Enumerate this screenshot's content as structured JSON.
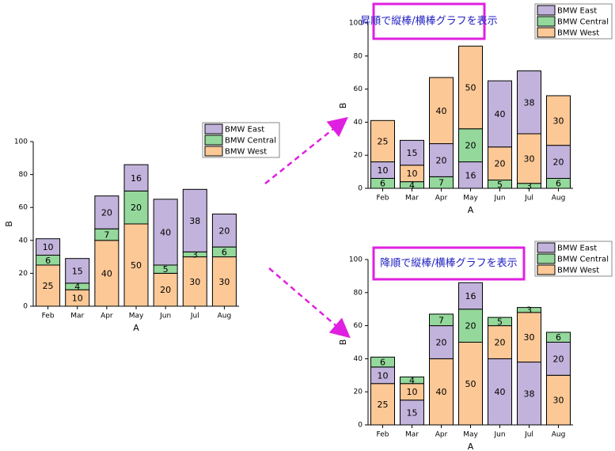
{
  "chart_data": [
    {
      "type": "bar",
      "stacked": true,
      "x_label": "A",
      "y_label": "B",
      "categories": [
        "Feb",
        "Mar",
        "Apr",
        "May",
        "Jun",
        "Jul",
        "Aug"
      ],
      "series": [
        {
          "name": "BMW West",
          "color": "#fcc896",
          "values": [
            25,
            10,
            40,
            50,
            20,
            30,
            30
          ]
        },
        {
          "name": "BMW Central",
          "color": "#94d89b",
          "values": [
            6,
            4,
            7,
            20,
            5,
            3,
            6
          ]
        },
        {
          "name": "BMW East",
          "color": "#c2b3dc",
          "values": [
            10,
            15,
            20,
            16,
            40,
            38,
            20
          ]
        }
      ],
      "ylim": [
        0,
        100
      ],
      "yticks": [
        0,
        20,
        40,
        60,
        80,
        100
      ]
    },
    {
      "type": "bar",
      "stacked": true,
      "stack_order": "ascending",
      "annotation": "昇順で縦棒/横棒グラフを表示",
      "x_label": "A",
      "y_label": "B",
      "categories": [
        "Feb",
        "Mar",
        "Apr",
        "May",
        "Jun",
        "Jul",
        "Aug"
      ],
      "series": [
        {
          "name": "BMW West",
          "color": "#fcc896",
          "values": [
            25,
            10,
            40,
            50,
            20,
            30,
            30
          ]
        },
        {
          "name": "BMW Central",
          "color": "#94d89b",
          "values": [
            6,
            4,
            7,
            20,
            5,
            3,
            6
          ]
        },
        {
          "name": "BMW East",
          "color": "#c2b3dc",
          "values": [
            10,
            15,
            20,
            16,
            40,
            38,
            20
          ]
        }
      ],
      "ylim": [
        0,
        100
      ],
      "yticks": [
        0,
        20,
        40,
        60,
        80,
        100
      ]
    },
    {
      "type": "bar",
      "stacked": true,
      "stack_order": "descending",
      "annotation": "降順で縦棒/横棒グラフを表示",
      "x_label": "A",
      "y_label": "B",
      "categories": [
        "Feb",
        "Mar",
        "Apr",
        "May",
        "Jun",
        "Jul",
        "Aug"
      ],
      "series": [
        {
          "name": "BMW West",
          "color": "#fcc896",
          "values": [
            25,
            10,
            40,
            50,
            20,
            30,
            30
          ]
        },
        {
          "name": "BMW Central",
          "color": "#94d89b",
          "values": [
            6,
            4,
            7,
            20,
            5,
            3,
            6
          ]
        },
        {
          "name": "BMW East",
          "color": "#c2b3dc",
          "values": [
            10,
            15,
            20,
            16,
            40,
            38,
            20
          ]
        }
      ],
      "ylim": [
        0,
        100
      ],
      "yticks": [
        0,
        20,
        40,
        60,
        80,
        100
      ]
    }
  ]
}
